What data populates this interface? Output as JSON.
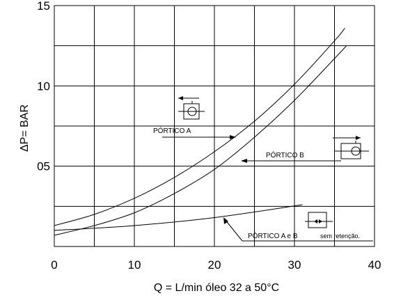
{
  "chart_data": {
    "type": "line",
    "title": "",
    "xlabel": "Q =  L/min  óleo 32 a 50°C",
    "ylabel": "ΔP= BAR",
    "xlim": [
      0,
      40
    ],
    "ylim": [
      0,
      15
    ],
    "x_ticks": [
      "0",
      "10",
      "20",
      "30",
      "40"
    ],
    "y_ticks": [
      "05",
      "10",
      "15"
    ],
    "y_tick_values": [
      5,
      10,
      15
    ],
    "grid": true,
    "series": [
      {
        "name": "PÓRTICO A",
        "x": [
          0,
          5,
          10,
          15,
          20,
          25,
          30,
          35,
          36.3
        ],
        "y": [
          1.3,
          2.0,
          3.0,
          4.3,
          5.9,
          7.8,
          10.1,
          12.8,
          13.6
        ]
      },
      {
        "name": "PÓRTICO B",
        "x": [
          0,
          5,
          10,
          15,
          20,
          25,
          30,
          35,
          36.5
        ],
        "y": [
          0.7,
          1.3,
          2.1,
          3.3,
          4.8,
          6.8,
          9.1,
          11.7,
          12.5
        ]
      },
      {
        "name": "PÓRTICO  A e B  sem retenção.",
        "x": [
          0,
          10,
          20,
          31
        ],
        "y": [
          1.0,
          1.3,
          1.8,
          2.6
        ]
      }
    ],
    "annotations": [
      {
        "text": "PÓRTICO  A",
        "target": "PÓRTICO A"
      },
      {
        "text": "PÓRTICO  B",
        "target": "PÓRTICO B"
      },
      {
        "text_main": "PÓRTICO  A e B",
        "text_small": "sem retenção.",
        "target": "PÓRTICO  A e B  sem retenção."
      }
    ]
  }
}
